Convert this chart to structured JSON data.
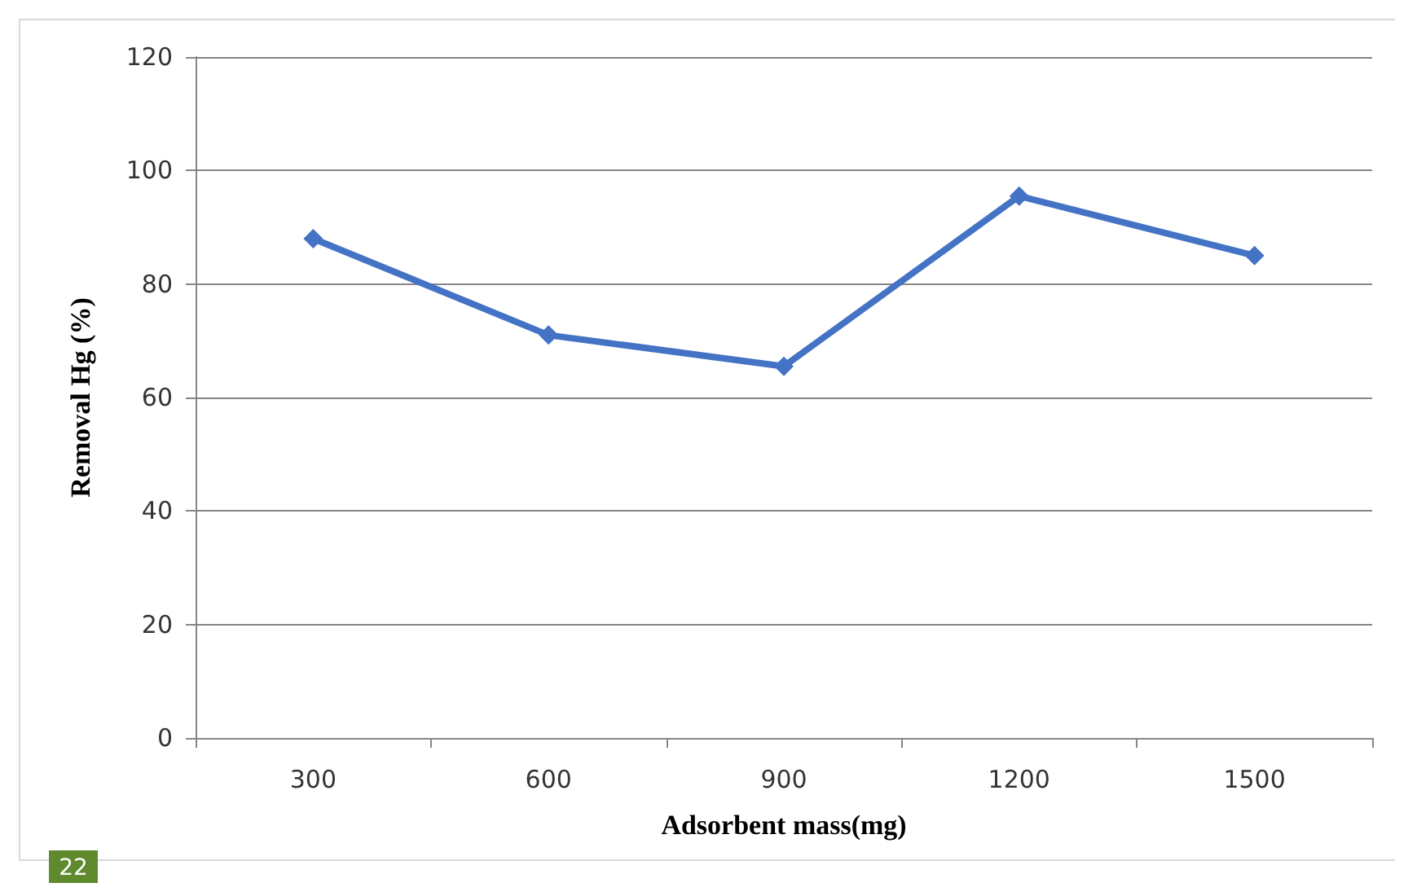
{
  "chart_data": {
    "type": "line",
    "xlabel": "Adsorbent mass(mg)",
    "ylabel": "Removal Hg (%)",
    "categories": [
      "300",
      "600",
      "900",
      "1200",
      "1500"
    ],
    "series": [
      {
        "color": "#4472c4",
        "values": [
          88,
          71,
          65.5,
          95.5,
          85
        ]
      }
    ],
    "ylim": [
      0,
      120
    ],
    "yticks": [
      0,
      20,
      40,
      60,
      80,
      100,
      120
    ],
    "grid": "y",
    "marker": "diamond",
    "line_style": "solid",
    "annotations": [
      "22"
    ]
  }
}
